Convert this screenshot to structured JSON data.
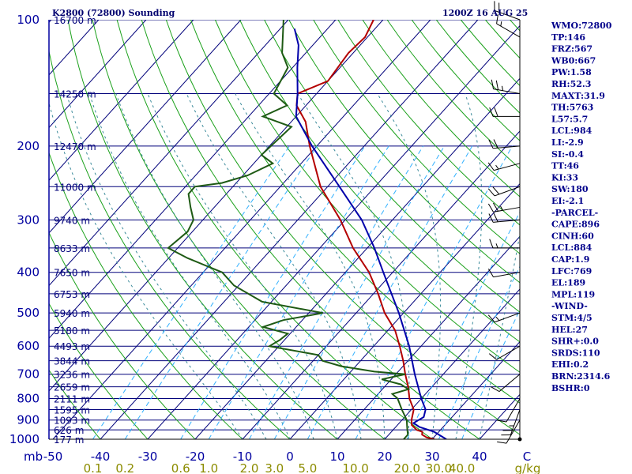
{
  "header": {
    "title": "K2800 (72800) Sounding",
    "time": "1200Z 16 AUG 25"
  },
  "chart_data": {
    "type": "line",
    "title": "K2800 (72800) Sounding",
    "xlabel_units": "mb",
    "wlabel_units": "g/kg",
    "pressure_ticks": [
      100,
      200,
      300,
      400,
      500,
      600,
      700,
      800,
      900,
      1000
    ],
    "pressure_tick_labels": [
      "100",
      "200",
      "300",
      "400",
      "500",
      "600",
      "700",
      "800",
      "900",
      "1000"
    ],
    "height_labels": [
      {
        "p": 100,
        "text": "16700 m"
      },
      {
        "p": 150,
        "text": "14250 m"
      },
      {
        "p": 200,
        "text": "12470 m"
      },
      {
        "p": 250,
        "text": "11000 m"
      },
      {
        "p": 300,
        "text": "9740 m"
      },
      {
        "p": 350,
        "text": "8633 m"
      },
      {
        "p": 400,
        "text": "7650 m"
      },
      {
        "p": 450,
        "text": "6753 m"
      },
      {
        "p": 500,
        "text": "5940 m"
      },
      {
        "p": 550,
        "text": "5180 m"
      },
      {
        "p": 600,
        "text": "4493 m"
      },
      {
        "p": 650,
        "text": "3844 m"
      },
      {
        "p": 700,
        "text": "3236 m"
      },
      {
        "p": 750,
        "text": "2659 m"
      },
      {
        "p": 800,
        "text": "2111 m"
      },
      {
        "p": 850,
        "text": "1595 m"
      },
      {
        "p": 900,
        "text": "1093 m"
      },
      {
        "p": 950,
        "text": "626 m"
      },
      {
        "p": 1000,
        "text": "177 m"
      }
    ],
    "temp_ticks": [
      -50,
      -40,
      -30,
      -20,
      -10,
      0,
      10,
      20,
      30,
      40
    ],
    "temp_tick_labels": [
      "-50",
      "-40",
      "-30",
      "-20",
      "-10",
      "0",
      "10",
      "20",
      "30",
      "40"
    ],
    "mixing_ratio_ticks": [
      0.1,
      0.2,
      0.6,
      1.0,
      2.0,
      3.0,
      5.0,
      10.0,
      20.0,
      30.0,
      40.0
    ],
    "mixing_ratio_tick_labels": [
      "0.1",
      "0.2",
      "0.6",
      "1.0",
      "2.0",
      "3.0",
      "5.0",
      "10.0",
      "20.0",
      "30.0",
      "40.0"
    ],
    "series": [
      {
        "color": "#b40000",
        "points": [
          [
            1000,
            30.5
          ],
          [
            990,
            28.5
          ],
          [
            975,
            27
          ],
          [
            960,
            26.5
          ],
          [
            950,
            25
          ],
          [
            925,
            23
          ],
          [
            900,
            22
          ],
          [
            850,
            20.5
          ],
          [
            800,
            17.5
          ],
          [
            750,
            15
          ],
          [
            700,
            12
          ],
          [
            650,
            9
          ],
          [
            600,
            5.5
          ],
          [
            550,
            1.5
          ],
          [
            500,
            -4
          ],
          [
            450,
            -9
          ],
          [
            400,
            -15
          ],
          [
            350,
            -23
          ],
          [
            300,
            -31
          ],
          [
            250,
            -41.5
          ],
          [
            200,
            -51.5
          ],
          [
            175,
            -57
          ],
          [
            160,
            -62
          ],
          [
            150,
            -64
          ],
          [
            140,
            -60
          ],
          [
            120,
            -61
          ],
          [
            110,
            -60.5
          ],
          [
            100,
            -62
          ]
        ]
      },
      {
        "color": "#1e5a14",
        "points": [
          [
            1000,
            24
          ],
          [
            975,
            24
          ],
          [
            950,
            23
          ],
          [
            925,
            22
          ],
          [
            900,
            21
          ],
          [
            850,
            18
          ],
          [
            800,
            15
          ],
          [
            780,
            13
          ],
          [
            760,
            15.5
          ],
          [
            740,
            13
          ],
          [
            720,
            8
          ],
          [
            700,
            12
          ],
          [
            690,
            5
          ],
          [
            670,
            -3
          ],
          [
            650,
            -8
          ],
          [
            630,
            -10
          ],
          [
            600,
            -22
          ],
          [
            580,
            -21
          ],
          [
            560,
            -20.5
          ],
          [
            540,
            -27
          ],
          [
            520,
            -24
          ],
          [
            500,
            -17
          ],
          [
            470,
            -32
          ],
          [
            430,
            -41
          ],
          [
            400,
            -46
          ],
          [
            370,
            -56
          ],
          [
            350,
            -62
          ],
          [
            320,
            -61
          ],
          [
            300,
            -62
          ],
          [
            280,
            -65
          ],
          [
            260,
            -68
          ],
          [
            250,
            -68
          ],
          [
            245,
            -63
          ],
          [
            235,
            -59
          ],
          [
            220,
            -56
          ],
          [
            210,
            -60
          ],
          [
            180,
            -59
          ],
          [
            170,
            -67
          ],
          [
            160,
            -64
          ],
          [
            150,
            -69
          ],
          [
            130,
            -71
          ],
          [
            120,
            -75
          ],
          [
            100,
            -81
          ]
        ]
      },
      {
        "color": "#0000aa",
        "points": [
          [
            1000,
            33
          ],
          [
            960,
            29
          ],
          [
            935,
            25
          ],
          [
            915,
            23
          ],
          [
            885,
            24
          ],
          [
            850,
            23
          ],
          [
            800,
            20
          ],
          [
            700,
            14
          ],
          [
            600,
            7.5
          ],
          [
            500,
            -1
          ],
          [
            400,
            -12
          ],
          [
            350,
            -18.5
          ],
          [
            300,
            -26.5
          ],
          [
            250,
            -37.5
          ],
          [
            200,
            -51
          ],
          [
            170,
            -60
          ],
          [
            150,
            -64
          ],
          [
            130,
            -69
          ],
          [
            115,
            -73
          ],
          [
            105,
            -77
          ]
        ]
      }
    ],
    "wind_profile": [
      {
        "p": 100,
        "dir": 290,
        "spd": 20
      },
      {
        "p": 110,
        "dir": 300,
        "spd": 15
      },
      {
        "p": 150,
        "dir": 280,
        "spd": 25
      },
      {
        "p": 170,
        "dir": 270,
        "spd": 20
      },
      {
        "p": 200,
        "dir": 265,
        "spd": 20
      },
      {
        "p": 220,
        "dir": 255,
        "spd": 15
      },
      {
        "p": 250,
        "dir": 250,
        "spd": 20
      },
      {
        "p": 280,
        "dir": 260,
        "spd": 25
      },
      {
        "p": 300,
        "dir": 265,
        "spd": 20
      },
      {
        "p": 350,
        "dir": 270,
        "spd": 15
      },
      {
        "p": 400,
        "dir": 260,
        "spd": 10
      },
      {
        "p": 500,
        "dir": 250,
        "spd": 15
      },
      {
        "p": 600,
        "dir": 240,
        "spd": 10
      },
      {
        "p": 700,
        "dir": 230,
        "spd": 10
      },
      {
        "p": 800,
        "dir": 210,
        "spd": 10
      },
      {
        "p": 850,
        "dir": 200,
        "spd": 25
      },
      {
        "p": 900,
        "dir": 210,
        "spd": 10
      },
      {
        "p": 1000,
        "dir": 0,
        "spd": 0
      }
    ]
  },
  "indices": [
    "WMO:72800",
    "TP:146",
    "FRZ:567",
    "WB0:667",
    "PW:1.58",
    "RH:52.3",
    "MAXT:31.9",
    "TH:5763",
    "L57:5.7",
    "LCL:984",
    "LI:-2.9",
    "SI:-0.4",
    "TT:46",
    "KI:33",
    "SW:180",
    "EI:-2.1",
    "-PARCEL-",
    "CAPE:896",
    "CINH:60",
    "LCL:884",
    "CAP:1.9",
    "LFC:769",
    "EL:189",
    "MPL:119",
    "-WIND-",
    "STM:4/5",
    "HEL:27",
    "SHR+:0.0",
    "SRDS:110",
    "EHI:0.2",
    "BRN:2314.6",
    "BSHR:0"
  ],
  "colors": {
    "isobar": "#00007a",
    "isotherm": "#00007a",
    "dry_adiabat": "#1aa01a",
    "moist_adiabat": "#3a8a9a",
    "mixing_ratio": "#30b0ff",
    "temperature": "#b40000",
    "dewpoint": "#1e5a14",
    "parcel": "#0000aa"
  }
}
